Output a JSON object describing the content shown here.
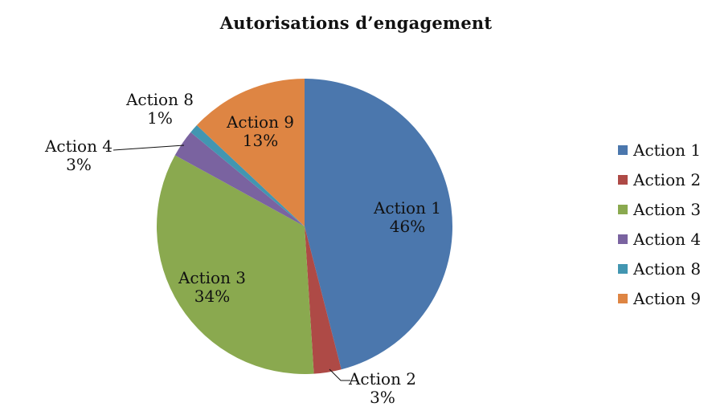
{
  "chart_data": {
    "type": "pie",
    "title": "Autorisations d’engagement",
    "legend_position": "right",
    "value_label_format": "percent",
    "start_angle_deg": 0,
    "direction": "clockwise",
    "slices": [
      {
        "label": "Action 1",
        "value": 46,
        "percent_label": "46%",
        "color": "#4B77AD",
        "label_placement": "inside"
      },
      {
        "label": "Action 2",
        "value": 3,
        "percent_label": "3%",
        "color": "#AE4A46",
        "label_placement": "outside",
        "leader_line": true
      },
      {
        "label": "Action 3",
        "value": 34,
        "percent_label": "34%",
        "color": "#8AA94F",
        "label_placement": "inside"
      },
      {
        "label": "Action 4",
        "value": 3,
        "percent_label": "3%",
        "color": "#7A63A0",
        "label_placement": "outside",
        "leader_line": true
      },
      {
        "label": "Action 8",
        "value": 1,
        "percent_label": "1%",
        "color": "#4296B1",
        "label_placement": "outside",
        "leader_line": false
      },
      {
        "label": "Action 9",
        "value": 13,
        "percent_label": "13%",
        "color": "#DE8543",
        "label_placement": "inside"
      }
    ],
    "legend_entries": [
      "Action 1",
      "Action 2",
      "Action 3",
      "Action 4",
      "Action 8",
      "Action 9"
    ]
  }
}
